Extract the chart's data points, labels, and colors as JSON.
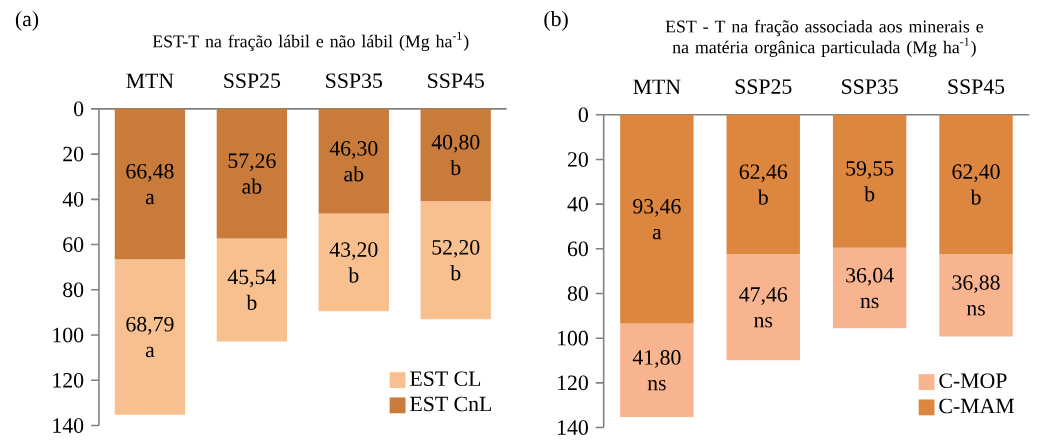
{
  "chart_data": [
    {
      "type": "bar",
      "stacked": true,
      "title": "EST-T na fração lábil e não lábil (Mg ha$^{-1}$)",
      "annotations": [
        "(a)"
      ],
      "categories": [
        "MTN",
        "SSP25",
        "SSP35",
        "SSP45"
      ],
      "series": [
        {
          "name": "EST CnL",
          "color": "#c97b3b",
          "values": [
            66.48,
            57.26,
            46.3,
            40.8
          ],
          "value_labels": [
            "66,48 a",
            "57,26 ab",
            "46,30 ab",
            "40,80 b"
          ]
        },
        {
          "name": "EST CL",
          "color": "#f9c08f",
          "values": [
            68.79,
            45.54,
            43.2,
            52.2
          ],
          "value_labels": [
            "68,79 a",
            "45,54 b",
            "43,20 b",
            "52,20 b"
          ]
        }
      ],
      "ylim": [
        140,
        0
      ],
      "yticks": [
        0,
        20,
        40,
        60,
        80,
        100,
        120,
        140
      ],
      "legend": "bottom right"
    },
    {
      "type": "bar",
      "stacked": true,
      "title": "EST - T na fração associada aos minerais e na matéria orgânica particulada (Mg ha$^{-1}$)",
      "annotations": [
        "(b)"
      ],
      "categories": [
        "MTN",
        "SSP25",
        "SSP35",
        "SSP45"
      ],
      "series": [
        {
          "name": "C-MAM",
          "color": "#dc8640",
          "values": [
            93.46,
            62.46,
            59.55,
            62.4
          ],
          "value_labels": [
            "93,46 a",
            "62,46 b",
            "59,55 b",
            "62,40 b"
          ]
        },
        {
          "name": "C-MOP",
          "color": "#f8b48e",
          "values": [
            41.8,
            47.46,
            36.04,
            36.88
          ],
          "value_labels": [
            "41,80 ns",
            "47,46 ns",
            "36,04 ns",
            "36,88 ns"
          ]
        }
      ],
      "ylim": [
        140,
        0
      ],
      "yticks": [
        0,
        20,
        40,
        60,
        80,
        100,
        120,
        140
      ],
      "legend": "bottom right"
    }
  ]
}
